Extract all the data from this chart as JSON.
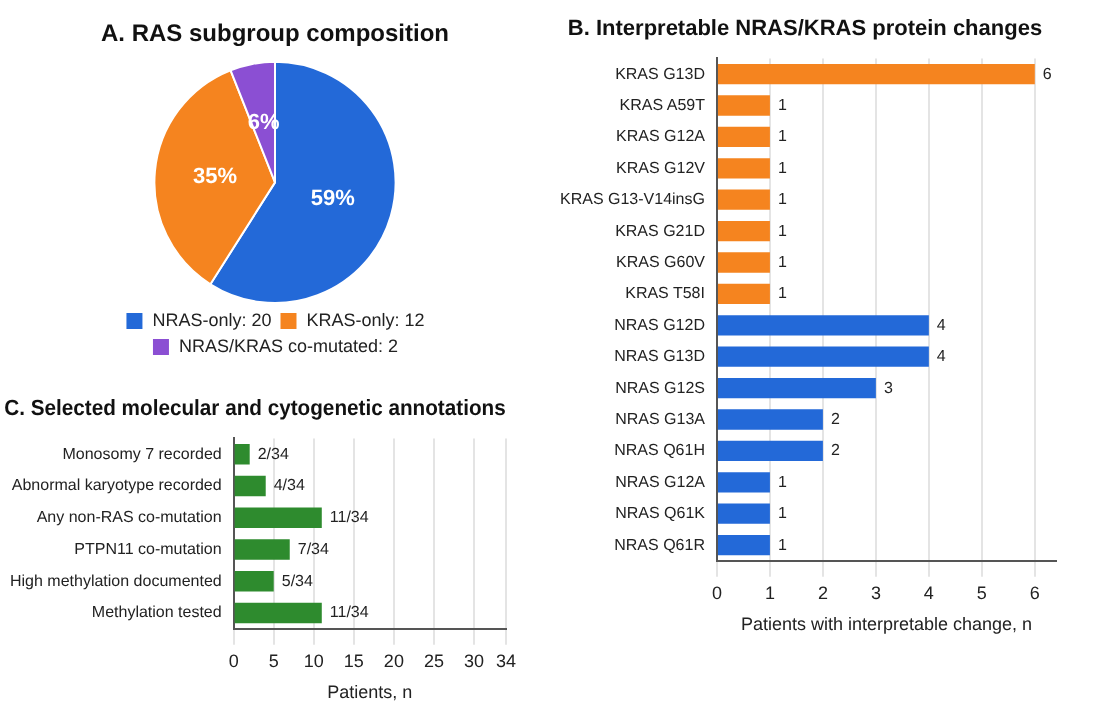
{
  "chart_data": [
    {
      "type": "pie",
      "title": "A. RAS subgroup composition",
      "categories": [
        "NRAS-only: 20",
        "KRAS-only: 12",
        "NRAS/KRAS co-mutated: 2"
      ],
      "values": [
        59,
        35,
        6
      ],
      "colors": [
        "#2369d8",
        "#f5841f",
        "#8b4fd3"
      ],
      "value_labels": [
        "59%",
        "35%",
        "6%"
      ],
      "legend": "bottom"
    },
    {
      "type": "bar",
      "orientation": "horizontal",
      "title": "B. Interpretable NRAS/KRAS protein changes",
      "xlabel": "Patients with interpretable change, n",
      "categories": [
        "KRAS G13D",
        "KRAS A59T",
        "KRAS G12A",
        "KRAS G12V",
        "KRAS G13-V14insG",
        "KRAS G21D",
        "KRAS G60V",
        "KRAS T58I",
        "NRAS G12D",
        "NRAS G13D",
        "NRAS G12S",
        "NRAS G13A",
        "NRAS Q61H",
        "NRAS G12A",
        "NRAS Q61K",
        "NRAS Q61R"
      ],
      "values": [
        6,
        1,
        1,
        1,
        1,
        1,
        1,
        1,
        4,
        4,
        3,
        2,
        2,
        1,
        1,
        1
      ],
      "colors": [
        "#f5841f",
        "#f5841f",
        "#f5841f",
        "#f5841f",
        "#f5841f",
        "#f5841f",
        "#f5841f",
        "#f5841f",
        "#2369d8",
        "#2369d8",
        "#2369d8",
        "#2369d8",
        "#2369d8",
        "#2369d8",
        "#2369d8",
        "#2369d8"
      ],
      "xlim": [
        0,
        6.4
      ],
      "xticks": [
        0,
        1,
        2,
        3,
        4,
        5,
        6
      ],
      "grid": "x",
      "data_labels": true
    },
    {
      "type": "bar",
      "orientation": "horizontal",
      "title": "C. Selected molecular and cytogenetic annotations",
      "xlabel": "Patients, n",
      "categories": [
        "Monosomy 7 recorded",
        "Abnormal karyotype recorded",
        "Any non-RAS co-mutation",
        "PTPN11 co-mutation",
        "High methylation documented",
        "Methylation tested"
      ],
      "values": [
        2,
        4,
        11,
        7,
        5,
        11
      ],
      "colors": [
        "#2e8b2e",
        "#2e8b2e",
        "#2e8b2e",
        "#2e8b2e",
        "#2e8b2e",
        "#2e8b2e"
      ],
      "value_labels": [
        "2/34",
        "4/34",
        "11/34",
        "7/34",
        "5/34",
        "11/34"
      ],
      "xlim": [
        0,
        34
      ],
      "xticks": [
        0,
        5,
        10,
        15,
        20,
        25,
        30,
        34
      ],
      "grid": "x"
    }
  ]
}
